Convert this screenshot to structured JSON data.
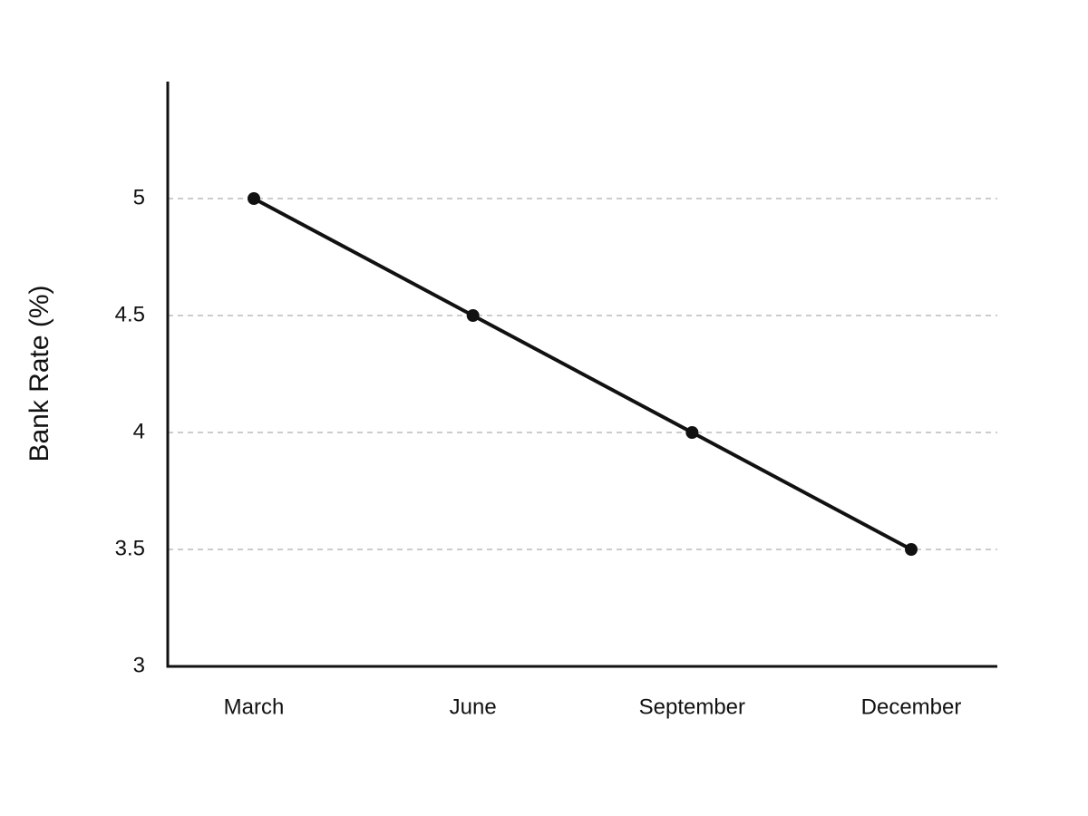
{
  "chart_data": {
    "type": "line",
    "y_label": "Bank Rate (%)",
    "categories": [
      "March",
      "June",
      "September",
      "December"
    ],
    "series": [
      {
        "name": "Bank Rate",
        "color": "#111111",
        "values": [
          5,
          4.5,
          4,
          3.5
        ]
      }
    ],
    "ylim": [
      3,
      5.5
    ],
    "yticks": [
      3,
      3.5,
      4,
      4.5,
      5
    ],
    "grid": true
  }
}
